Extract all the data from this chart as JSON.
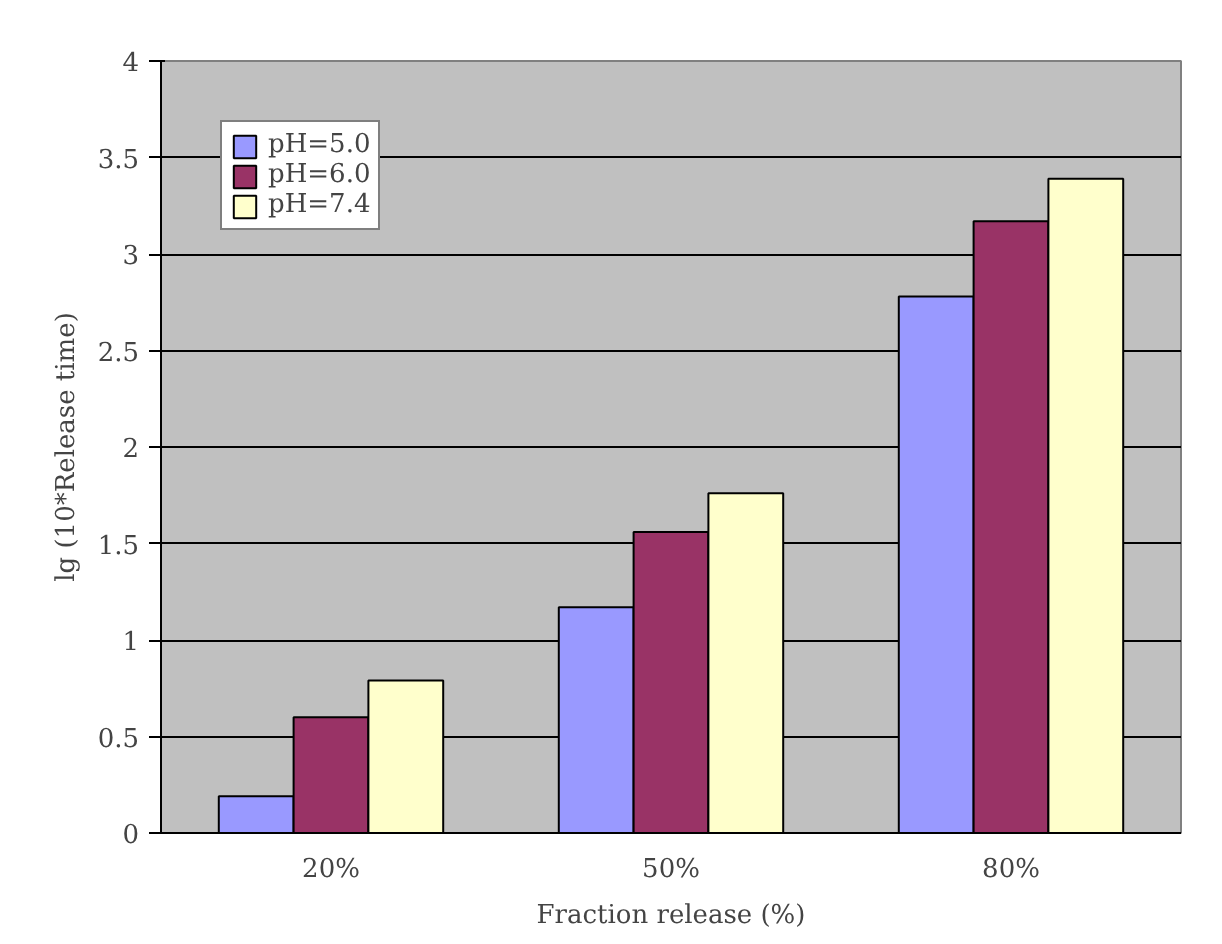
{
  "chart_data": {
    "type": "bar",
    "xlabel": "Fraction release (%)",
    "ylabel": "lg (10*Release time)",
    "categories": [
      "20%",
      "50%",
      "80%"
    ],
    "series": [
      {
        "name": "pH=5.0",
        "color": "#9999ff",
        "values": [
          0.19,
          1.17,
          2.78
        ]
      },
      {
        "name": "pH=6.0",
        "color": "#993366",
        "values": [
          0.6,
          1.56,
          3.17
        ]
      },
      {
        "name": "pH=7.4",
        "color": "#ffffcc",
        "values": [
          0.79,
          1.76,
          3.39
        ]
      }
    ],
    "ylim": [
      0,
      4
    ],
    "yticks": [
      0,
      0.5,
      1,
      1.5,
      2,
      2.5,
      3,
      3.5,
      4
    ],
    "grid": "y",
    "legend": "top left"
  }
}
